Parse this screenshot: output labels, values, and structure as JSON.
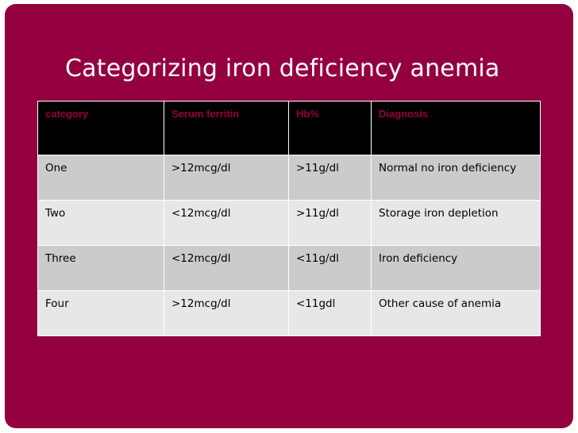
{
  "slide": {
    "title": "Categorizing iron deficiency anemia",
    "background_color": "#94003f"
  },
  "table": {
    "headers": [
      "category",
      "Serum ferritin",
      "Hb%",
      "Diagnosis"
    ],
    "rows": [
      [
        "One",
        ">12mcg/dl",
        ">11g/dl",
        "Normal no iron deficiency"
      ],
      [
        "Two",
        "<12mcg/dl",
        ">11g/dl",
        "Storage iron depletion"
      ],
      [
        "Three",
        "<12mcg/dl",
        "<11g/dl",
        "Iron deficiency"
      ],
      [
        "Four",
        ">12mcg/dl",
        "<11gdl",
        "Other cause of anemia"
      ]
    ],
    "colors": {
      "header_bg": "#000000",
      "header_text": "#94003f",
      "row_odd_bg": "#cbcbcb",
      "row_even_bg": "#e7e7e7"
    }
  }
}
